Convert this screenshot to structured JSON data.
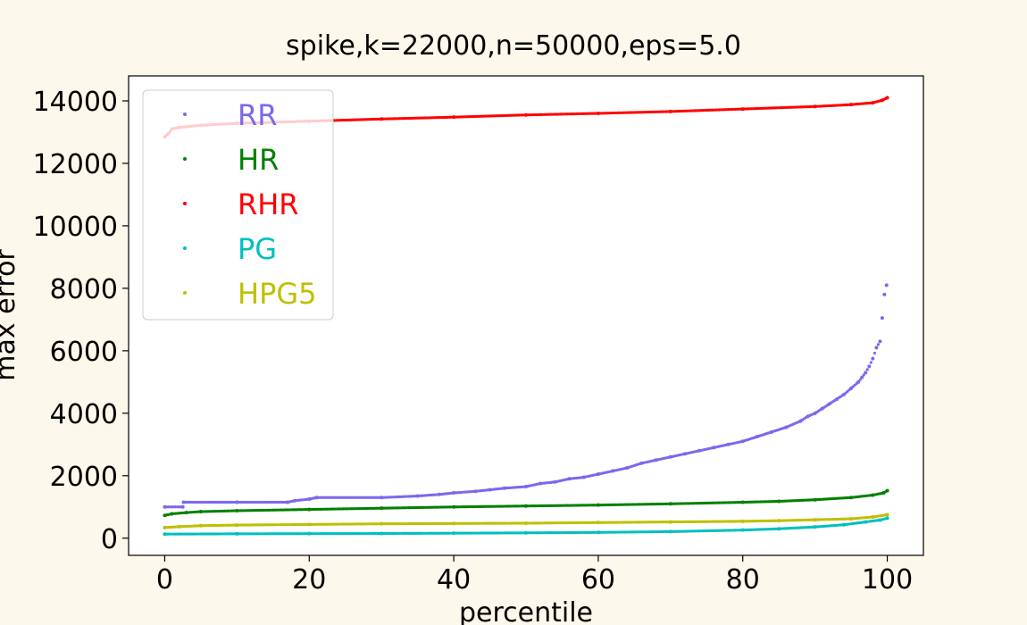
{
  "chart_data": {
    "type": "scatter",
    "title": "spike,k=22000,n=50000,eps=5.0",
    "xlabel": "percentile",
    "ylabel": "max error",
    "xlim": [
      -5,
      105
    ],
    "ylim": [
      -550,
      14800
    ],
    "xticks": [
      0,
      20,
      40,
      60,
      80,
      100
    ],
    "yticks": [
      0,
      2000,
      4000,
      6000,
      8000,
      10000,
      12000,
      14000
    ],
    "grid": false,
    "legend_position": "upper-left",
    "series": [
      {
        "name": "RR",
        "color": "#7b68ee",
        "points": [
          [
            0,
            1000
          ],
          [
            2.5,
            1000
          ],
          [
            2.6,
            1150
          ],
          [
            10,
            1150
          ],
          [
            17,
            1150
          ],
          [
            18,
            1200
          ],
          [
            20,
            1250
          ],
          [
            21,
            1300
          ],
          [
            30,
            1300
          ],
          [
            35,
            1350
          ],
          [
            38,
            1400
          ],
          [
            40,
            1450
          ],
          [
            43,
            1500
          ],
          [
            45,
            1550
          ],
          [
            47,
            1600
          ],
          [
            50,
            1650
          ],
          [
            52,
            1750
          ],
          [
            54,
            1800
          ],
          [
            56,
            1900
          ],
          [
            58,
            1950
          ],
          [
            60,
            2050
          ],
          [
            62,
            2150
          ],
          [
            64,
            2250
          ],
          [
            66,
            2400
          ],
          [
            68,
            2500
          ],
          [
            70,
            2600
          ],
          [
            72,
            2700
          ],
          [
            74,
            2800
          ],
          [
            76,
            2900
          ],
          [
            78,
            3000
          ],
          [
            80,
            3100
          ],
          [
            82,
            3250
          ],
          [
            84,
            3400
          ],
          [
            86,
            3550
          ],
          [
            88,
            3750
          ],
          [
            89,
            3900
          ],
          [
            90,
            4000
          ],
          [
            91,
            4150
          ],
          [
            92,
            4300
          ],
          [
            93,
            4450
          ],
          [
            94,
            4600
          ],
          [
            95,
            4800
          ],
          [
            96,
            5000
          ],
          [
            96.5,
            5150
          ],
          [
            97,
            5300
          ],
          [
            97.5,
            5500
          ],
          [
            98,
            5750
          ],
          [
            98.5,
            6100
          ],
          [
            99,
            6300
          ],
          [
            99.3,
            7050
          ],
          [
            99.6,
            7800
          ],
          [
            99.9,
            8100
          ]
        ]
      },
      {
        "name": "HR",
        "color": "#008000",
        "points": [
          [
            0,
            730
          ],
          [
            1,
            780
          ],
          [
            3,
            820
          ],
          [
            5,
            850
          ],
          [
            10,
            880
          ],
          [
            20,
            920
          ],
          [
            30,
            960
          ],
          [
            40,
            1000
          ],
          [
            50,
            1030
          ],
          [
            60,
            1060
          ],
          [
            70,
            1100
          ],
          [
            80,
            1150
          ],
          [
            85,
            1180
          ],
          [
            90,
            1230
          ],
          [
            95,
            1300
          ],
          [
            98,
            1380
          ],
          [
            99.5,
            1450
          ],
          [
            100,
            1520
          ]
        ]
      },
      {
        "name": "RHR",
        "color": "#ff0000",
        "points": [
          [
            0,
            12850
          ],
          [
            0.5,
            12950
          ],
          [
            1,
            13100
          ],
          [
            2,
            13150
          ],
          [
            5,
            13220
          ],
          [
            10,
            13280
          ],
          [
            20,
            13350
          ],
          [
            30,
            13420
          ],
          [
            40,
            13480
          ],
          [
            50,
            13550
          ],
          [
            60,
            13600
          ],
          [
            70,
            13660
          ],
          [
            80,
            13740
          ],
          [
            90,
            13820
          ],
          [
            95,
            13880
          ],
          [
            98,
            13940
          ],
          [
            99.3,
            14020
          ],
          [
            100,
            14100
          ]
        ]
      },
      {
        "name": "PG",
        "color": "#00bfbf",
        "points": [
          [
            0,
            130
          ],
          [
            10,
            140
          ],
          [
            20,
            145
          ],
          [
            30,
            150
          ],
          [
            40,
            160
          ],
          [
            50,
            170
          ],
          [
            60,
            185
          ],
          [
            70,
            210
          ],
          [
            80,
            260
          ],
          [
            85,
            300
          ],
          [
            90,
            360
          ],
          [
            94,
            430
          ],
          [
            97,
            520
          ],
          [
            99,
            580
          ],
          [
            100,
            640
          ]
        ]
      },
      {
        "name": "HPG5",
        "color": "#bfbf00",
        "points": [
          [
            0,
            340
          ],
          [
            2,
            370
          ],
          [
            5,
            400
          ],
          [
            10,
            420
          ],
          [
            20,
            440
          ],
          [
            30,
            460
          ],
          [
            40,
            470
          ],
          [
            50,
            480
          ],
          [
            60,
            500
          ],
          [
            70,
            520
          ],
          [
            80,
            540
          ],
          [
            85,
            560
          ],
          [
            90,
            590
          ],
          [
            95,
            620
          ],
          [
            98,
            680
          ],
          [
            100,
            750
          ]
        ]
      }
    ]
  }
}
